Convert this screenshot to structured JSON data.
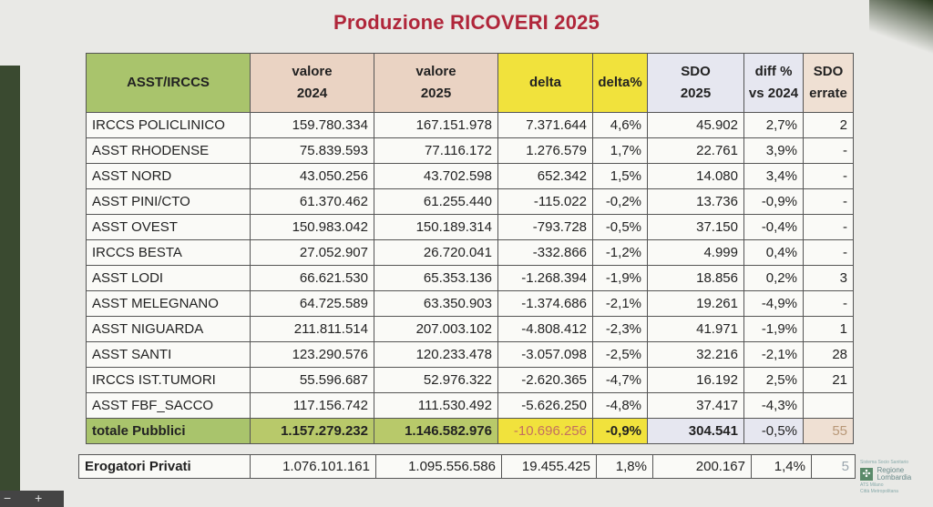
{
  "title": "Produzione RICOVERI 2025",
  "headers": {
    "asst": "ASST/IRCCS",
    "val2024_a": "valore",
    "val2024_b": "2024",
    "val2025_a": "valore",
    "val2025_b": "2025",
    "delta": "delta",
    "deltap": "delta%",
    "sdo_a": "SDO",
    "sdo_b": "2025",
    "diff_a": "diff %",
    "diff_b": "vs 2024",
    "err_a": "SDO",
    "err_b": "errate"
  },
  "rows": [
    {
      "name": "IRCCS POLICLINICO",
      "v2024": "159.780.334",
      "v2025": "167.151.978",
      "delta": "7.371.644",
      "deltap": "4,6%",
      "sdo": "45.902",
      "diff": "2,7%",
      "err": "2"
    },
    {
      "name": "ASST RHODENSE",
      "v2024": "75.839.593",
      "v2025": "77.116.172",
      "delta": "1.276.579",
      "deltap": "1,7%",
      "sdo": "22.761",
      "diff": "3,9%",
      "err": "-"
    },
    {
      "name": "ASST NORD",
      "v2024": "43.050.256",
      "v2025": "43.702.598",
      "delta": "652.342",
      "deltap": "1,5%",
      "sdo": "14.080",
      "diff": "3,4%",
      "err": "-"
    },
    {
      "name": "ASST PINI/CTO",
      "v2024": "61.370.462",
      "v2025": "61.255.440",
      "delta": "-115.022",
      "deltap": "-0,2%",
      "sdo": "13.736",
      "diff": "-0,9%",
      "err": "-"
    },
    {
      "name": "ASST OVEST",
      "v2024": "150.983.042",
      "v2025": "150.189.314",
      "delta": "-793.728",
      "deltap": "-0,5%",
      "sdo": "37.150",
      "diff": "-0,4%",
      "err": "-"
    },
    {
      "name": "IRCCS BESTA",
      "v2024": "27.052.907",
      "v2025": "26.720.041",
      "delta": "-332.866",
      "deltap": "-1,2%",
      "sdo": "4.999",
      "diff": "0,4%",
      "err": "-"
    },
    {
      "name": "ASST LODI",
      "v2024": "66.621.530",
      "v2025": "65.353.136",
      "delta": "-1.268.394",
      "deltap": "-1,9%",
      "sdo": "18.856",
      "diff": "0,2%",
      "err": "3"
    },
    {
      "name": "ASST MELEGNANO",
      "v2024": "64.725.589",
      "v2025": "63.350.903",
      "delta": "-1.374.686",
      "deltap": "-2,1%",
      "sdo": "19.261",
      "diff": "-4,9%",
      "err": "-"
    },
    {
      "name": "ASST NIGUARDA",
      "v2024": "211.811.514",
      "v2025": "207.003.102",
      "delta": "-4.808.412",
      "deltap": "-2,3%",
      "sdo": "41.971",
      "diff": "-1,9%",
      "err": "1"
    },
    {
      "name": "ASST SANTI",
      "v2024": "123.290.576",
      "v2025": "120.233.478",
      "delta": "-3.057.098",
      "deltap": "-2,5%",
      "sdo": "32.216",
      "diff": "-2,1%",
      "err": "28"
    },
    {
      "name": "IRCCS IST.TUMORI",
      "v2024": "55.596.687",
      "v2025": "52.976.322",
      "delta": "-2.620.365",
      "deltap": "-4,7%",
      "sdo": "16.192",
      "diff": "2,5%",
      "err": "21"
    },
    {
      "name": "ASST FBF_SACCO",
      "v2024": "117.156.742",
      "v2025": "111.530.492",
      "delta": "-5.626.250",
      "deltap": "-4,8%",
      "sdo": "37.417",
      "diff": "-4,3%",
      "err": ""
    }
  ],
  "total": {
    "name": "totale Pubblici",
    "v2024": "1.157.279.232",
    "v2025": "1.146.582.976",
    "delta": "-10.696.256",
    "deltap": "-0,9%",
    "sdo": "304.541",
    "diff": "-0,5%",
    "err": "55"
  },
  "private": {
    "name": "Erogatori Privati",
    "v2024": "1.076.101.161",
    "v2025": "1.095.556.586",
    "delta": "19.455.425",
    "deltap": "1,8%",
    "sdo": "200.167",
    "diff": "1,4%",
    "err": "5"
  },
  "logo": {
    "top": "Sistema Socio Sanitario",
    "brand_a": "Regione",
    "brand_b": "Lombardia",
    "sub_a": "ATS Milano",
    "sub_b": "Città Metropolitana"
  },
  "controls": {
    "zoom_out": "−",
    "zoom_in": "+"
  },
  "colors": {
    "title": "#b0263a",
    "name_header": "#a9c46c",
    "value_header": "#ead3c3",
    "delta_header": "#f1e23c",
    "negative": "#c0392b"
  }
}
